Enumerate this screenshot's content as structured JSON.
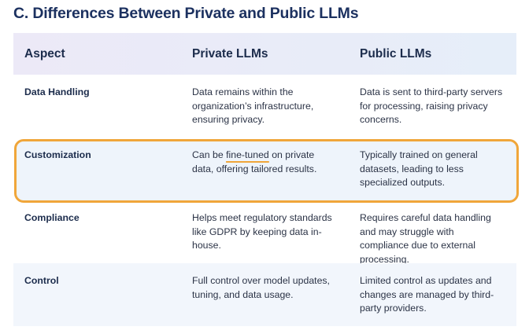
{
  "title": "C. Differences Between Private and Public LLMs",
  "table": {
    "header": [
      "Aspect",
      "Private LLMs",
      "Public LLMs"
    ],
    "rows": [
      [
        "Data Handling",
        "Data remains within the organization’s infrastructure, ensuring privacy.",
        "Data is sent to third-party servers for processing, raising privacy concerns."
      ],
      [
        "Customization",
        {
          "before": "Can be ",
          "highlight": "fine-tuned",
          "after": " on private data, offering tailored results."
        },
        "Typically trained on general datasets, leading to less specialized outputs."
      ],
      [
        "Compliance",
        "Helps meet regulatory standards like GDPR by keeping data in-house.",
        "Requires careful data handling and may struggle with compliance due to external processing."
      ],
      [
        "Control",
        "Full control over model updates, tuning, and data usage.",
        "Limited control as updates and changes are managed by third-party providers."
      ]
    ]
  }
}
